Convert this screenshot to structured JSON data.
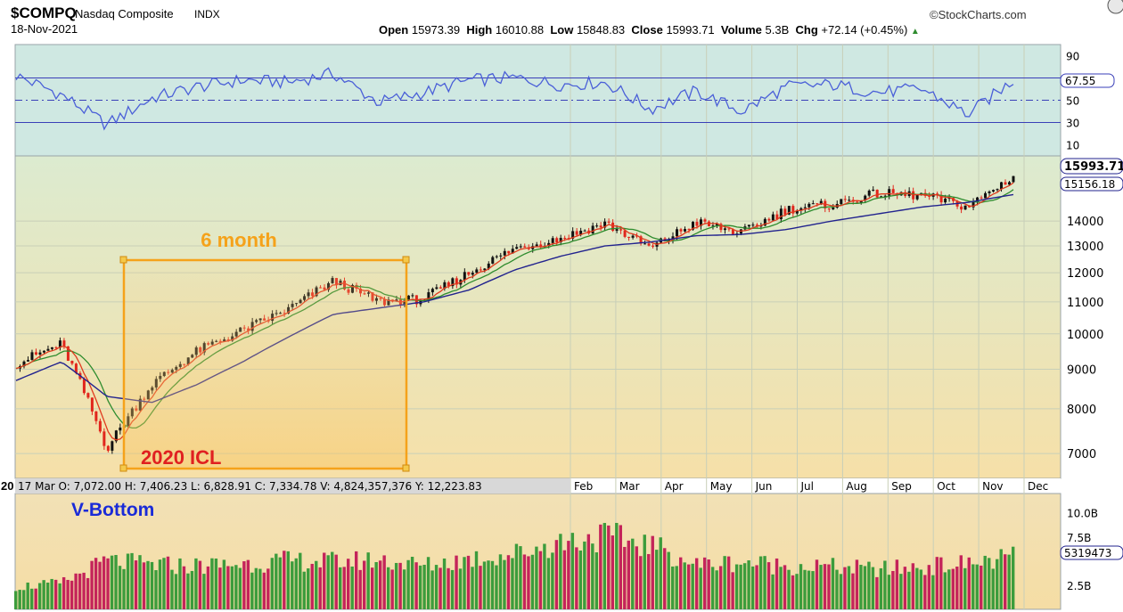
{
  "header": {
    "symbol": "$COMPQ",
    "name": "Nasdaq Composite",
    "exchange": "INDX",
    "date": "18-Nov-2021",
    "brand": "StockCharts.com",
    "open_label": "Open",
    "open": "15973.39",
    "high_label": "High",
    "high": "16010.88",
    "low_label": "Low",
    "low": "15848.83",
    "close_label": "Close",
    "close": "15993.71",
    "volume_label": "Volume",
    "volume": "5.3B",
    "chg_label": "Chg",
    "chg": "+72.14 (+0.45%)",
    "up_arrow": "▲"
  },
  "colors": {
    "rsi_bg": "#cfe8e2",
    "price_top": "#dfeccd",
    "price_bottom": "#f6e1ac",
    "rsi_line": "#4a5fd8",
    "level_line": "#3a3fb8",
    "up_bar": "#111111",
    "down_bar": "#e1261c",
    "ma_red": "#e03a1e",
    "ma_green": "#2e8c2e",
    "ma_blue": "#22238e",
    "box": "#f5a21a",
    "vol_up": "#3c9c3c",
    "vol_down": "#c4245a",
    "annotation_red": "#e02020",
    "annotation_blue": "#1a2bd8"
  },
  "annotations": {
    "six_month": "6 month",
    "icl": "2020 ICL",
    "v_bottom": "V-Bottom"
  },
  "info_bar": {
    "prefix": "20",
    "text": "17 Mar O: 7,072.00   H: 7,406.23   L: 6,828.91   C: 7,334.78   V: 4,824,357,376   Y: 12,223.83"
  },
  "chart_data": [
    {
      "type": "line",
      "panel": "RSI",
      "ylim": [
        0,
        100
      ],
      "ticks": [
        90,
        50,
        30,
        10
      ],
      "levels": [
        70,
        50,
        30
      ],
      "current_value": "67.55",
      "x": [
        "2020-01",
        "2020-02",
        "2020-03",
        "2020-04",
        "2020-05",
        "2020-06",
        "2020-07",
        "2020-08",
        "2020-09",
        "2020-10",
        "2020-11",
        "2020-12",
        "2021-01",
        "2021-02",
        "2021-03",
        "2021-04",
        "2021-05",
        "2021-06",
        "2021-07",
        "2021-08",
        "2021-09",
        "2021-10",
        "2021-11"
      ],
      "values": [
        72,
        55,
        28,
        52,
        62,
        68,
        66,
        74,
        48,
        57,
        68,
        70,
        64,
        66,
        42,
        58,
        40,
        62,
        64,
        57,
        60,
        37,
        68
      ]
    },
    {
      "type": "candlestick",
      "panel": "Price",
      "scale": "log",
      "ylim": [
        6500,
        17000
      ],
      "ticks": [
        7000,
        8000,
        9000,
        10000,
        11000,
        12000,
        13000,
        14000
      ],
      "months": [
        "Feb",
        "Mar",
        "Apr",
        "May",
        "Jun",
        "Jul",
        "Aug",
        "Sep",
        "Oct",
        "Nov",
        "Dec"
      ],
      "last_price": "15993.71",
      "ma_label": "15156.18",
      "x": [
        "2020-01",
        "2020-02",
        "2020-03",
        "2020-04",
        "2020-05",
        "2020-06",
        "2020-07",
        "2020-08",
        "2020-09",
        "2020-10",
        "2020-11",
        "2020-12",
        "2021-01",
        "2021-02",
        "2021-03",
        "2021-04",
        "2021-05",
        "2021-06",
        "2021-07",
        "2021-08",
        "2021-09",
        "2021-10",
        "2021-11"
      ],
      "close": [
        9150,
        9700,
        7100,
        8600,
        9500,
        10100,
        10750,
        11700,
        11000,
        11100,
        12000,
        12900,
        13300,
        13900,
        12900,
        13950,
        13500,
        14500,
        14700,
        15200,
        15100,
        14600,
        16000
      ],
      "ma_long": [
        8700,
        9200,
        8300,
        8150,
        8600,
        9200,
        9900,
        10600,
        10800,
        11000,
        11400,
        12100,
        12600,
        13000,
        13150,
        13400,
        13450,
        13650,
        14000,
        14300,
        14600,
        14800,
        15150
      ]
    },
    {
      "type": "bar",
      "panel": "Volume",
      "ylim": [
        0,
        12000000000
      ],
      "ticks": [
        "10.0B",
        "7.5B",
        "2.5B"
      ],
      "current_value": "5319473",
      "x": [
        "2020-01",
        "2020-02",
        "2020-03",
        "2020-04",
        "2020-05",
        "2020-06",
        "2020-07",
        "2020-08",
        "2020-09",
        "2020-10",
        "2020-11",
        "2020-12",
        "2021-01",
        "2021-02",
        "2021-03",
        "2021-04",
        "2021-05",
        "2021-06",
        "2021-07",
        "2021-08",
        "2021-09",
        "2021-10",
        "2021-11"
      ],
      "values": [
        2300000000.0,
        2600000000.0,
        4900000000.0,
        4500000000.0,
        4400000000.0,
        4600000000.0,
        4900000000.0,
        4800000000.0,
        5000000000.0,
        4400000000.0,
        5100000000.0,
        5600000000.0,
        6800000000.0,
        7400000000.0,
        6500000000.0,
        4500000000.0,
        4800000000.0,
        4400000000.0,
        4300000000.0,
        4000000000.0,
        4300000000.0,
        4600000000.0,
        5300000000.0
      ]
    }
  ]
}
